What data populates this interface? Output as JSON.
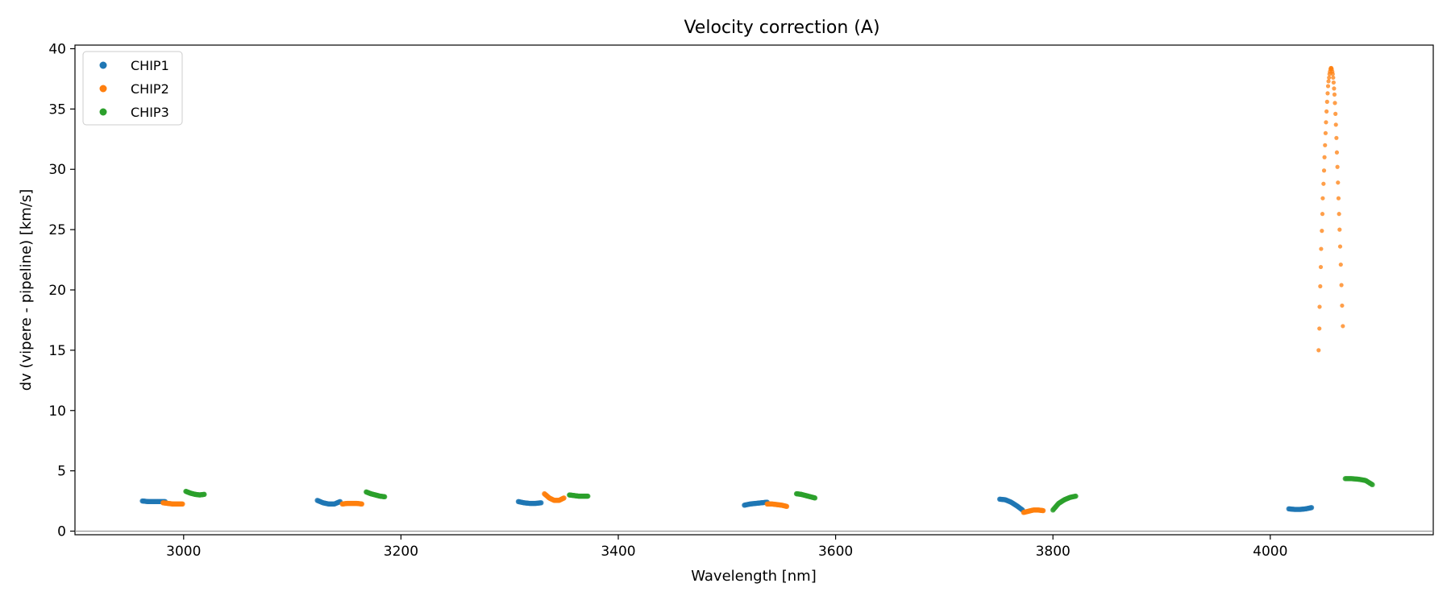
{
  "chart_data": {
    "type": "scatter",
    "title": "Velocity correction (A)",
    "xlabel": "Wavelength [nm]",
    "ylabel": "dv (vipere - pipeline) [km/s]",
    "xlim": [
      2900,
      4150
    ],
    "ylim": [
      -0.3,
      40.3
    ],
    "xticks": [
      3000,
      3200,
      3400,
      3600,
      3800,
      4000
    ],
    "yticks": [
      0,
      5,
      10,
      15,
      20,
      25,
      30,
      35,
      40
    ],
    "zero_line": 0,
    "legend": {
      "position": "top-left",
      "entries": [
        "CHIP1",
        "CHIP2",
        "CHIP3"
      ]
    },
    "series": [
      {
        "name": "CHIP1",
        "color": "#1f77b4",
        "segments": [
          {
            "x_start": 2962,
            "x_end": 2983,
            "y_knots": [
              2.5,
              2.45,
              2.45,
              2.45,
              2.45
            ],
            "n": 32
          },
          {
            "x_start": 3123,
            "x_end": 3144,
            "y_knots": [
              2.55,
              2.35,
              2.25,
              2.25,
              2.45
            ],
            "n": 32
          },
          {
            "x_start": 3308,
            "x_end": 3329,
            "y_knots": [
              2.45,
              2.35,
              2.3,
              2.3,
              2.35
            ],
            "n": 32
          },
          {
            "x_start": 3516,
            "x_end": 3537,
            "y_knots": [
              2.15,
              2.25,
              2.3,
              2.35,
              2.4
            ],
            "n": 32
          },
          {
            "x_start": 3751,
            "x_end": 3772,
            "y_knots": [
              2.65,
              2.6,
              2.4,
              2.1,
              1.75
            ],
            "n": 32
          },
          {
            "x_start": 4017,
            "x_end": 4038,
            "y_knots": [
              1.85,
              1.8,
              1.8,
              1.85,
              1.95
            ],
            "n": 32
          }
        ]
      },
      {
        "name": "CHIP2",
        "color": "#ff7f0e",
        "segments": [
          {
            "x_start": 2981,
            "x_end": 2999,
            "y_knots": [
              2.35,
              2.3,
              2.25,
              2.25,
              2.25
            ],
            "n": 32
          },
          {
            "x_start": 3146,
            "x_end": 3164,
            "y_knots": [
              2.25,
              2.3,
              2.3,
              2.3,
              2.25
            ],
            "n": 32
          },
          {
            "x_start": 3332,
            "x_end": 3350,
            "y_knots": [
              3.1,
              2.75,
              2.55,
              2.55,
              2.75
            ],
            "n": 32
          },
          {
            "x_start": 3537,
            "x_end": 3555,
            "y_knots": [
              2.25,
              2.25,
              2.2,
              2.15,
              2.05
            ],
            "n": 32
          },
          {
            "x_start": 3773,
            "x_end": 3791,
            "y_knots": [
              1.55,
              1.65,
              1.75,
              1.75,
              1.7
            ],
            "n": 32
          }
        ],
        "dots": [
          {
            "x": 4044.5,
            "y": 15.0
          },
          {
            "x": 4045.2,
            "y": 16.8
          },
          {
            "x": 4045.4,
            "y": 18.6
          },
          {
            "x": 4046.0,
            "y": 20.3
          },
          {
            "x": 4046.5,
            "y": 21.9
          },
          {
            "x": 4046.8,
            "y": 23.4
          },
          {
            "x": 4047.5,
            "y": 24.9
          },
          {
            "x": 4048.0,
            "y": 26.3
          },
          {
            "x": 4048.3,
            "y": 27.6
          },
          {
            "x": 4049.0,
            "y": 28.8
          },
          {
            "x": 4049.5,
            "y": 29.9
          },
          {
            "x": 4049.9,
            "y": 31.0
          },
          {
            "x": 4050.4,
            "y": 32.0
          },
          {
            "x": 4050.9,
            "y": 33.0
          },
          {
            "x": 4051.3,
            "y": 33.9
          },
          {
            "x": 4051.8,
            "y": 34.8
          },
          {
            "x": 4052.3,
            "y": 35.6
          },
          {
            "x": 4052.8,
            "y": 36.3
          },
          {
            "x": 4053.2,
            "y": 36.9
          },
          {
            "x": 4053.6,
            "y": 37.3
          },
          {
            "x": 4054.1,
            "y": 37.6
          },
          {
            "x": 4054.5,
            "y": 37.9
          },
          {
            "x": 4054.9,
            "y": 38.1
          },
          {
            "x": 4055.4,
            "y": 38.3
          },
          {
            "x": 4055.8,
            "y": 38.4
          },
          {
            "x": 4056.2,
            "y": 38.4
          },
          {
            "x": 4056.6,
            "y": 38.3
          },
          {
            "x": 4057.1,
            "y": 38.1
          },
          {
            "x": 4057.5,
            "y": 37.9
          },
          {
            "x": 4057.9,
            "y": 37.6
          },
          {
            "x": 4058.3,
            "y": 37.2
          },
          {
            "x": 4058.7,
            "y": 36.7
          },
          {
            "x": 4059.1,
            "y": 36.2
          },
          {
            "x": 4059.5,
            "y": 35.5
          },
          {
            "x": 4060.0,
            "y": 34.6
          },
          {
            "x": 4060.4,
            "y": 33.7
          },
          {
            "x": 4060.9,
            "y": 32.6
          },
          {
            "x": 4061.3,
            "y": 31.4
          },
          {
            "x": 4061.8,
            "y": 30.2
          },
          {
            "x": 4062.3,
            "y": 28.9
          },
          {
            "x": 4062.8,
            "y": 27.6
          },
          {
            "x": 4063.3,
            "y": 26.3
          },
          {
            "x": 4063.8,
            "y": 25.0
          },
          {
            "x": 4064.3,
            "y": 23.6
          },
          {
            "x": 4064.9,
            "y": 22.1
          },
          {
            "x": 4065.5,
            "y": 20.4
          },
          {
            "x": 4066.1,
            "y": 18.7
          },
          {
            "x": 4066.8,
            "y": 17.0
          }
        ]
      },
      {
        "name": "CHIP3",
        "color": "#2ca02c",
        "segments": [
          {
            "x_start": 3002,
            "x_end": 3019,
            "y_knots": [
              3.3,
              3.15,
              3.05,
              3.0,
              3.05
            ],
            "n": 32
          },
          {
            "x_start": 3168,
            "x_end": 3185,
            "y_knots": [
              3.25,
              3.1,
              3.0,
              2.9,
              2.85
            ],
            "n": 32
          },
          {
            "x_start": 3355,
            "x_end": 3372,
            "y_knots": [
              3.0,
              2.95,
              2.9,
              2.9,
              2.9
            ],
            "n": 32
          },
          {
            "x_start": 3564,
            "x_end": 3581,
            "y_knots": [
              3.1,
              3.05,
              2.95,
              2.85,
              2.75
            ],
            "n": 32
          },
          {
            "x_start": 3800,
            "x_end": 3821,
            "y_knots": [
              1.75,
              2.3,
              2.6,
              2.8,
              2.9
            ],
            "n": 32
          },
          {
            "x_start": 4069,
            "x_end": 4094,
            "y_knots": [
              4.35,
              4.35,
              4.3,
              4.2,
              3.85
            ],
            "n": 32
          }
        ]
      }
    ]
  }
}
